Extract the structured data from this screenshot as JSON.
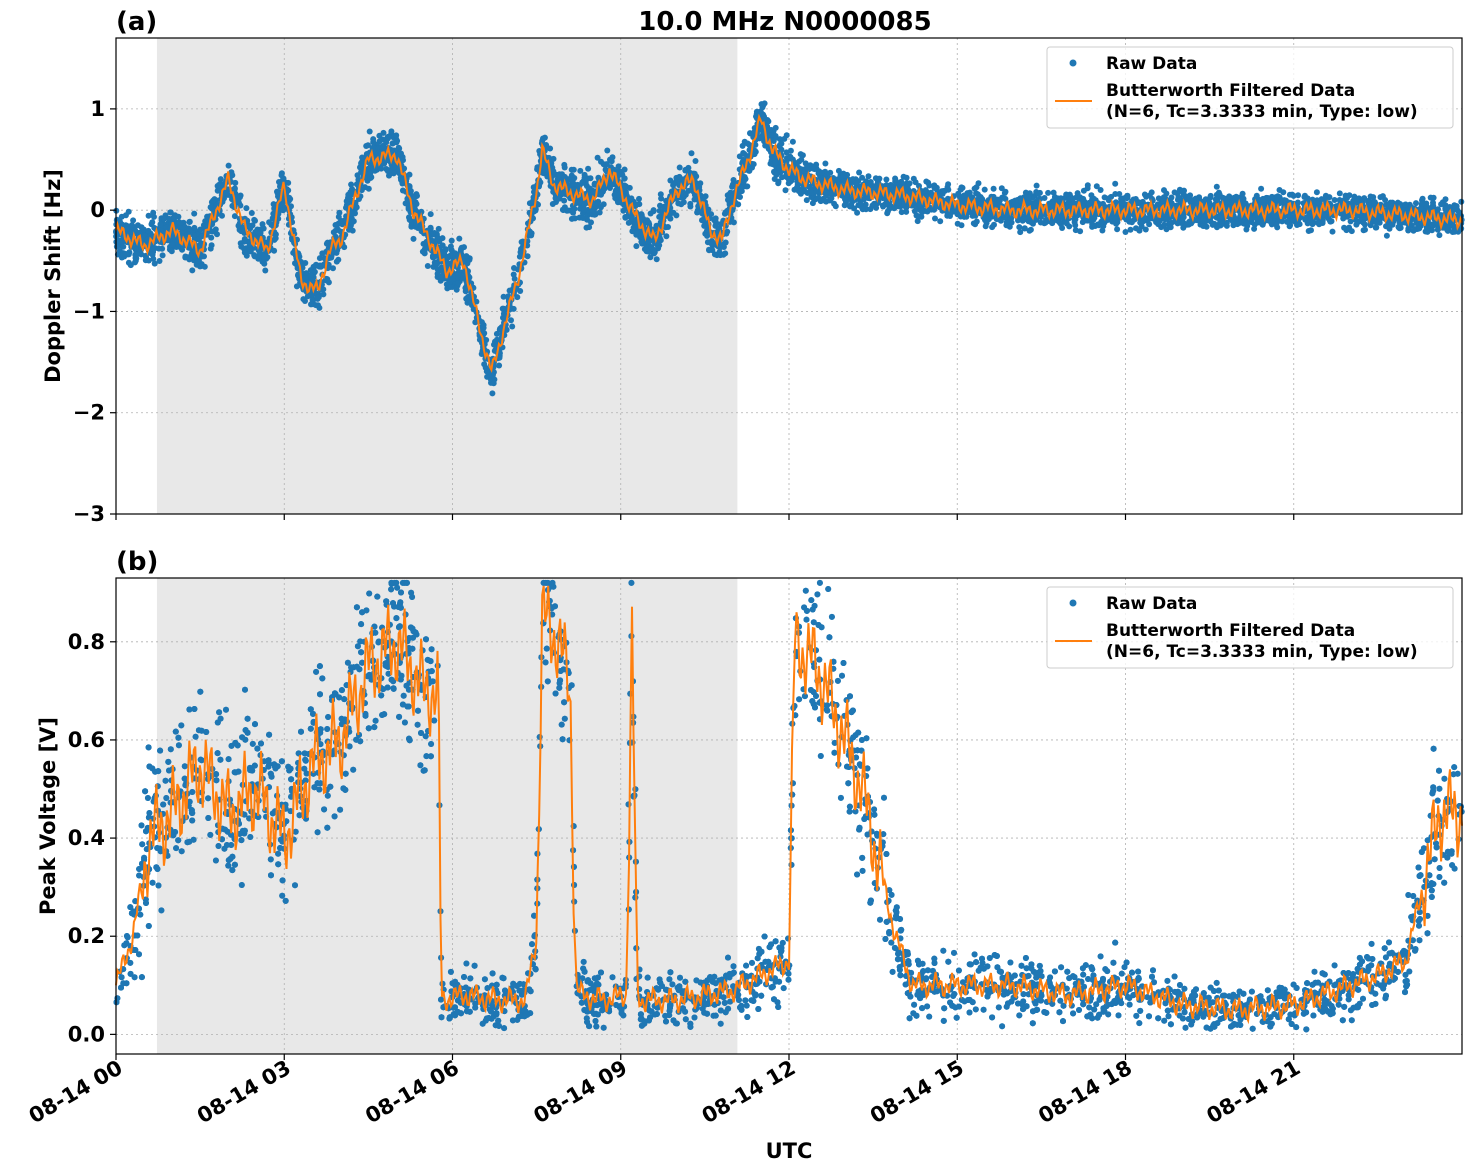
{
  "figure": {
    "title": "10.0 MHz N0000085",
    "xlabel": "UTC",
    "x_tick_labels": [
      "08-14 00",
      "08-14 03",
      "08-14 06",
      "08-14 09",
      "08-14 12",
      "08-14 15",
      "08-14 18",
      "08-14 21"
    ]
  },
  "colors": {
    "raw": "#1f77b4",
    "filtered": "#ff7f0e",
    "shade": "#e8e8e8"
  },
  "chart_data": [
    {
      "type": "scatter",
      "panel": "(a)",
      "ylabel": "Doppler Shift [Hz]",
      "xlim": [
        0,
        24
      ],
      "ylim": [
        -3,
        1.7
      ],
      "y_ticks": [
        -3,
        -2,
        -1,
        0,
        1
      ],
      "y_tick_labels": [
        "−3",
        "−2",
        "−1",
        "0",
        "1"
      ],
      "grid": true,
      "legend_position": "top-right",
      "shaded_interval_hours": [
        0.73,
        11.08
      ],
      "legend": [
        {
          "label": "Raw Data"
        },
        {
          "label": "Butterworth Filtered Data",
          "label2": "(N=6, Tc=3.3333 min, Type: low)"
        }
      ],
      "series": [
        {
          "name": "Raw Data",
          "kind": "scatter",
          "spread_hz": 0.35,
          "x": [
            0,
            0.5,
            1,
            1.5,
            2,
            2.3,
            2.7,
            3,
            3.3,
            3.6,
            3.8,
            4,
            4.5,
            5,
            5.3,
            5.6,
            5.9,
            6.2,
            6.5,
            6.7,
            6.9,
            7.2,
            7.5,
            7.6,
            7.8,
            8.2,
            8.5,
            8.8,
            9,
            9.3,
            9.6,
            10,
            10.3,
            10.6,
            10.8,
            11,
            11.3,
            11.5,
            11.7,
            12,
            12.3,
            13,
            14,
            15,
            16,
            17,
            18,
            19,
            20,
            21,
            22,
            23,
            24
          ],
          "y": [
            -0.2,
            -0.35,
            -0.2,
            -0.4,
            0.3,
            -0.2,
            -0.4,
            0.25,
            -0.7,
            -0.8,
            -0.4,
            -0.3,
            0.5,
            0.55,
            0.0,
            -0.3,
            -0.6,
            -0.5,
            -1.2,
            -1.6,
            -1.2,
            -0.6,
            0.2,
            0.6,
            0.25,
            0.15,
            0.1,
            0.4,
            0.2,
            -0.1,
            -0.3,
            0.2,
            0.3,
            -0.2,
            -0.3,
            0.1,
            0.55,
            0.9,
            0.6,
            0.4,
            0.3,
            0.2,
            0.15,
            0.05,
            0.0,
            0.0,
            0.0,
            0.0,
            0.0,
            0.0,
            0.0,
            -0.05,
            -0.1
          ]
        },
        {
          "name": "Butterworth Filtered Data",
          "kind": "line",
          "x": [
            0,
            0.5,
            1,
            1.5,
            2,
            2.3,
            2.7,
            3,
            3.3,
            3.6,
            3.8,
            4,
            4.5,
            5,
            5.3,
            5.6,
            5.9,
            6.2,
            6.5,
            6.7,
            6.9,
            7.2,
            7.5,
            7.6,
            7.8,
            8.2,
            8.5,
            8.8,
            9,
            9.3,
            9.6,
            10,
            10.3,
            10.6,
            10.8,
            11,
            11.3,
            11.5,
            11.7,
            12,
            12.3,
            13,
            14,
            15,
            16,
            17,
            18,
            19,
            20,
            21,
            22,
            23,
            24
          ],
          "y": [
            -0.2,
            -0.35,
            -0.2,
            -0.4,
            0.3,
            -0.2,
            -0.4,
            0.25,
            -0.7,
            -0.8,
            -0.4,
            -0.3,
            0.5,
            0.55,
            0.0,
            -0.3,
            -0.6,
            -0.5,
            -1.2,
            -1.6,
            -1.2,
            -0.6,
            0.2,
            0.6,
            0.25,
            0.15,
            0.1,
            0.4,
            0.2,
            -0.1,
            -0.3,
            0.2,
            0.3,
            -0.2,
            -0.3,
            0.1,
            0.55,
            0.9,
            0.6,
            0.4,
            0.3,
            0.2,
            0.15,
            0.05,
            0.0,
            0.0,
            0.0,
            0.0,
            0.0,
            0.0,
            0.0,
            -0.05,
            -0.1
          ]
        }
      ]
    },
    {
      "type": "scatter",
      "panel": "(b)",
      "ylabel": "Peak Voltage [V]",
      "xlim": [
        0,
        24
      ],
      "ylim": [
        -0.04,
        0.93
      ],
      "y_ticks": [
        0.0,
        0.2,
        0.4,
        0.6,
        0.8
      ],
      "y_tick_labels": [
        "0.0",
        "0.2",
        "0.4",
        "0.6",
        "0.8"
      ],
      "grid": true,
      "legend_position": "top-right",
      "shaded_interval_hours": [
        0.73,
        11.08
      ],
      "legend": [
        {
          "label": "Raw Data"
        },
        {
          "label": "Butterworth Filtered Data",
          "label2": "(N=6, Tc=3.3333 min, Type: low)"
        }
      ],
      "series": [
        {
          "name": "Raw Data",
          "kind": "scatter",
          "x": [
            0,
            0.3,
            0.6,
            1,
            1.5,
            2,
            2.5,
            3,
            3.5,
            4,
            4.5,
            5,
            5.5,
            5.75,
            5.8,
            6.2,
            6.8,
            7.3,
            7.5,
            7.6,
            7.9,
            8.1,
            8.2,
            8.3,
            8.7,
            9.1,
            9.2,
            9.3,
            9.35,
            10,
            10.5,
            11,
            11.5,
            12.0,
            12.1,
            12.5,
            13,
            13.3,
            13.6,
            13.9,
            14.2,
            15,
            16,
            17,
            18,
            19,
            20,
            21,
            22,
            22.5,
            23,
            23.3,
            23.6,
            24
          ],
          "y": [
            0.1,
            0.2,
            0.4,
            0.45,
            0.55,
            0.45,
            0.5,
            0.4,
            0.55,
            0.6,
            0.75,
            0.8,
            0.7,
            0.7,
            0.07,
            0.08,
            0.07,
            0.07,
            0.2,
            0.85,
            0.8,
            0.7,
            0.1,
            0.08,
            0.07,
            0.08,
            0.8,
            0.08,
            0.07,
            0.07,
            0.08,
            0.09,
            0.12,
            0.15,
            0.8,
            0.75,
            0.6,
            0.5,
            0.35,
            0.2,
            0.1,
            0.1,
            0.1,
            0.08,
            0.1,
            0.06,
            0.05,
            0.06,
            0.1,
            0.12,
            0.15,
            0.3,
            0.45,
            0.45
          ]
        },
        {
          "name": "Butterworth Filtered Data",
          "kind": "line",
          "x": [
            0,
            0.3,
            0.6,
            1,
            1.5,
            2,
            2.5,
            3,
            3.5,
            4,
            4.5,
            5,
            5.5,
            5.75,
            5.8,
            6.2,
            6.8,
            7.3,
            7.5,
            7.6,
            7.9,
            8.1,
            8.2,
            8.3,
            8.7,
            9.1,
            9.2,
            9.3,
            9.35,
            10,
            10.5,
            11,
            11.5,
            12.0,
            12.1,
            12.5,
            13,
            13.3,
            13.6,
            13.9,
            14.2,
            15,
            16,
            17,
            18,
            19,
            20,
            21,
            22,
            22.5,
            23,
            23.3,
            23.6,
            24
          ],
          "y": [
            0.1,
            0.2,
            0.4,
            0.45,
            0.55,
            0.45,
            0.5,
            0.4,
            0.55,
            0.6,
            0.75,
            0.8,
            0.7,
            0.7,
            0.07,
            0.08,
            0.07,
            0.07,
            0.2,
            0.85,
            0.8,
            0.7,
            0.1,
            0.08,
            0.07,
            0.08,
            0.8,
            0.08,
            0.07,
            0.07,
            0.08,
            0.09,
            0.12,
            0.15,
            0.8,
            0.75,
            0.6,
            0.5,
            0.35,
            0.2,
            0.1,
            0.1,
            0.1,
            0.08,
            0.1,
            0.06,
            0.05,
            0.06,
            0.1,
            0.12,
            0.15,
            0.3,
            0.45,
            0.45
          ]
        }
      ]
    }
  ]
}
